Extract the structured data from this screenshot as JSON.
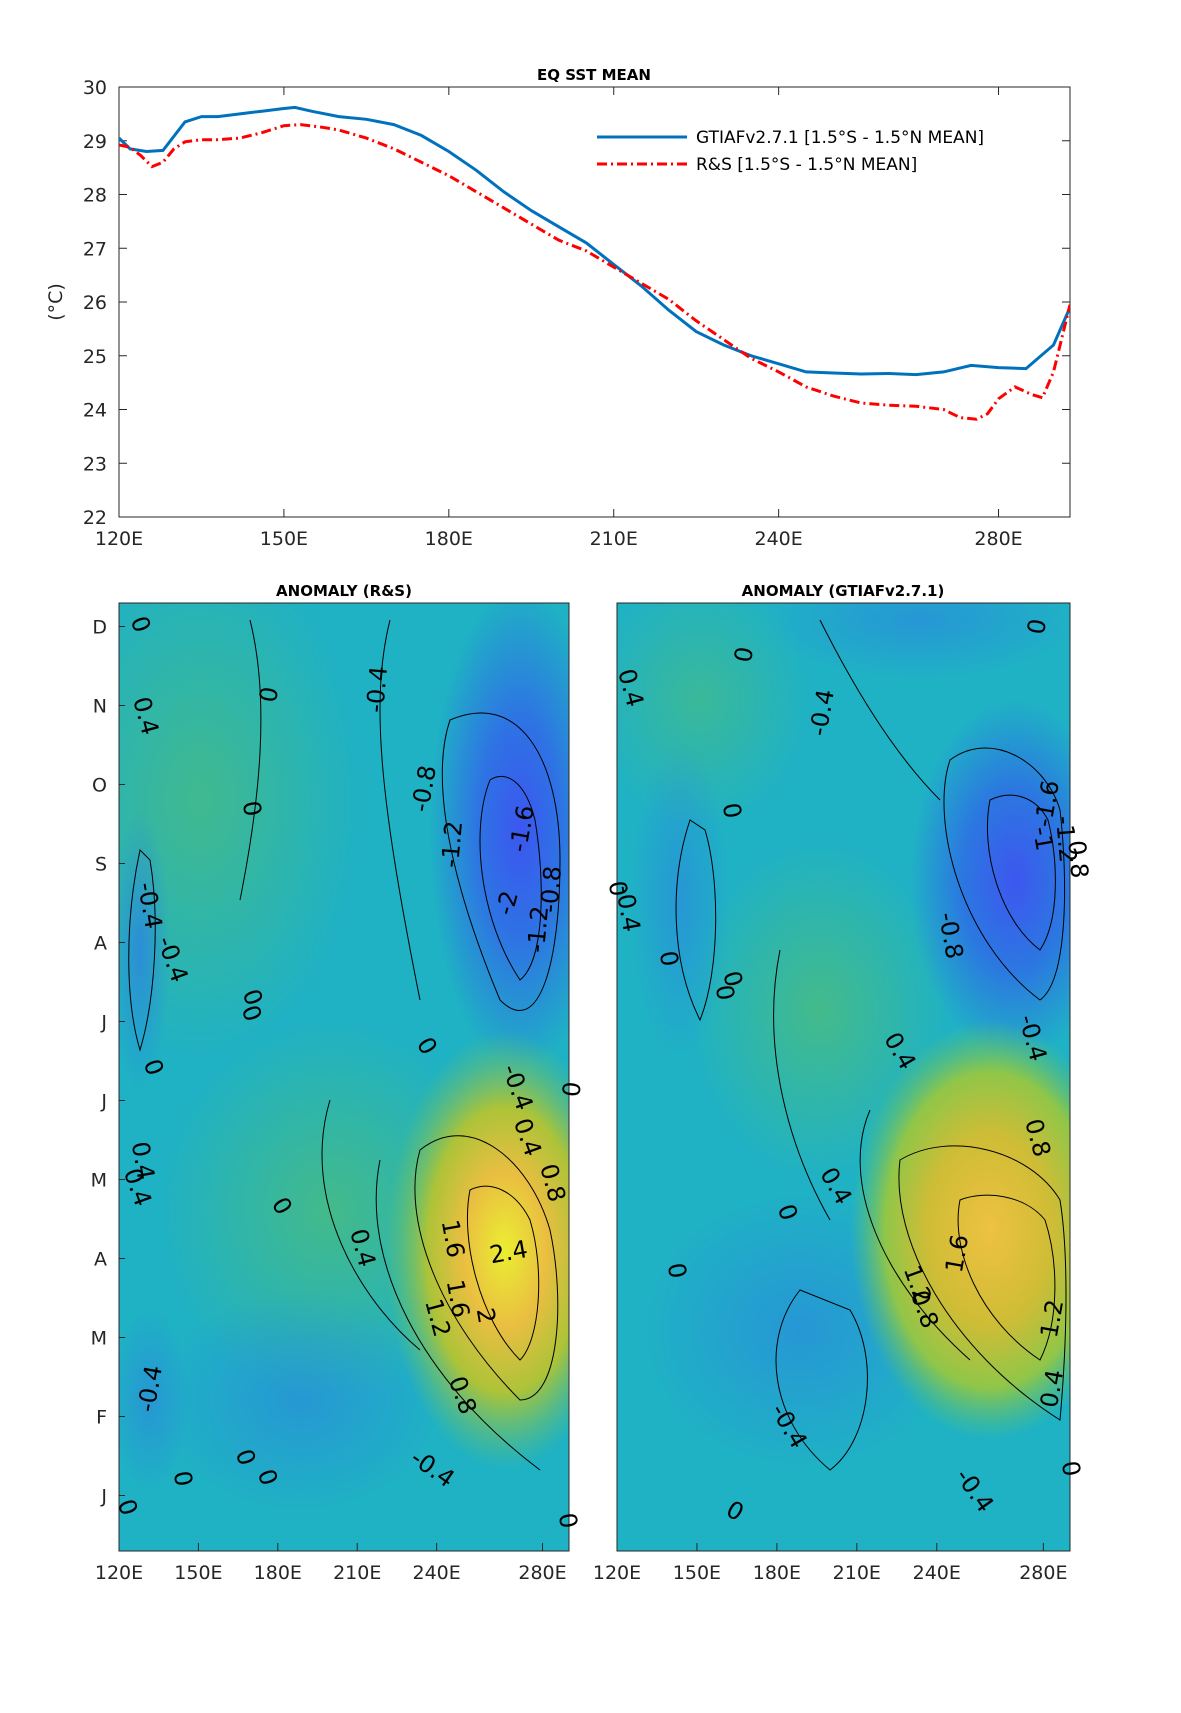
{
  "chart_data": [
    {
      "type": "line",
      "title": "EQ SST MEAN",
      "ylabel": "(°C)",
      "xlim": [
        120,
        293
      ],
      "ylim": [
        22,
        30
      ],
      "xticks": [
        120,
        150,
        180,
        210,
        240,
        280
      ],
      "xtick_labels": [
        "120E",
        "150E",
        "180E",
        "210E",
        "240E",
        "280E"
      ],
      "yticks": [
        22,
        23,
        24,
        25,
        26,
        27,
        28,
        29,
        30
      ],
      "ytick_labels": [
        "22",
        "23",
        "24",
        "25",
        "26",
        "27",
        "28",
        "29",
        "30"
      ],
      "legend_position": "top-right",
      "colors": {
        "GTIAF": "#0072BD",
        "RS": "#FF0000"
      },
      "series": [
        {
          "name": "GTIAFv2.7.1 [1.5°S - 1.5°N MEAN]",
          "style": "solid",
          "x": [
            120,
            122,
            125,
            128,
            132,
            135,
            138,
            142,
            146,
            150,
            152,
            155,
            160,
            165,
            170,
            175,
            180,
            185,
            190,
            195,
            200,
            205,
            210,
            215,
            220,
            225,
            230,
            235,
            240,
            245,
            250,
            255,
            260,
            265,
            270,
            275,
            280,
            285,
            290,
            293
          ],
          "y": [
            29.05,
            28.85,
            28.8,
            28.82,
            29.35,
            29.45,
            29.45,
            29.5,
            29.55,
            29.6,
            29.62,
            29.55,
            29.45,
            29.4,
            29.3,
            29.1,
            28.8,
            28.45,
            28.05,
            27.7,
            27.4,
            27.1,
            26.7,
            26.3,
            25.85,
            25.45,
            25.2,
            25.0,
            24.85,
            24.7,
            24.68,
            24.66,
            24.67,
            24.65,
            24.7,
            24.82,
            24.78,
            24.76,
            25.2,
            25.9
          ]
        },
        {
          "name": "R&S [1.5°S - 1.5°N MEAN]",
          "style": "dashed",
          "x": [
            120,
            122,
            124,
            126,
            128,
            130,
            132,
            135,
            138,
            142,
            146,
            150,
            153,
            157,
            160,
            165,
            170,
            175,
            180,
            185,
            190,
            195,
            200,
            205,
            210,
            215,
            220,
            225,
            230,
            235,
            240,
            245,
            250,
            255,
            260,
            265,
            270,
            273,
            276,
            278,
            280,
            283,
            286,
            288,
            290,
            293
          ],
          "y": [
            28.92,
            28.88,
            28.72,
            28.52,
            28.6,
            28.85,
            28.98,
            29.02,
            29.02,
            29.05,
            29.15,
            29.28,
            29.3,
            29.25,
            29.2,
            29.05,
            28.85,
            28.6,
            28.35,
            28.05,
            27.75,
            27.45,
            27.15,
            26.95,
            26.65,
            26.35,
            26.05,
            25.65,
            25.3,
            24.95,
            24.7,
            24.42,
            24.25,
            24.12,
            24.08,
            24.06,
            24.0,
            23.85,
            23.82,
            23.92,
            24.2,
            24.42,
            24.28,
            24.22,
            24.7,
            25.95
          ]
        }
      ]
    },
    {
      "type": "heatmap",
      "title": "ANOMALY (R&S)",
      "xlim": [
        120,
        290
      ],
      "xtick_labels": [
        "120E",
        "150E",
        "180E",
        "210E",
        "240E",
        "280E"
      ],
      "ytick_labels": [
        "J",
        "F",
        "M",
        "A",
        "M",
        "J",
        "J",
        "A",
        "S",
        "O",
        "N",
        "D"
      ],
      "contour_labels": [
        "0",
        "0.4",
        "-0.4",
        "0",
        "-0.4",
        "0",
        "-0.4",
        "0",
        "-0.8",
        "-1.2",
        "-1.6",
        "-2",
        "-1.2",
        "-0.8",
        "0",
        "0",
        "0",
        "0",
        "-0.4",
        "0.4",
        "0.4",
        "0",
        "0.4",
        "0.8",
        "1.6",
        "2.4",
        "1.6",
        "2",
        "1.2",
        "0.8",
        "-0.4",
        "0",
        "0",
        "-0.4",
        "0",
        "0",
        "0",
        "0.4"
      ]
    },
    {
      "type": "heatmap",
      "title": "ANOMALY (GTIAFv2.7.1)",
      "xlim": [
        120,
        290
      ],
      "xtick_labels": [
        "120E",
        "150E",
        "180E",
        "210E",
        "240E",
        "280E"
      ],
      "contour_labels": [
        "0",
        "0",
        "0.4",
        "-0.4",
        "0",
        "-1.6",
        "-1",
        "-1.2",
        "0.8",
        "0",
        "-0.4",
        "-0.8",
        "0",
        "0",
        "0",
        "0.4",
        "-0.4",
        "0.8",
        "0.4",
        "0",
        "1.6",
        "1.2",
        "0.8",
        "0",
        "1.2",
        "0.4",
        "-0.4",
        "-0.4",
        "0",
        "0"
      ]
    }
  ]
}
